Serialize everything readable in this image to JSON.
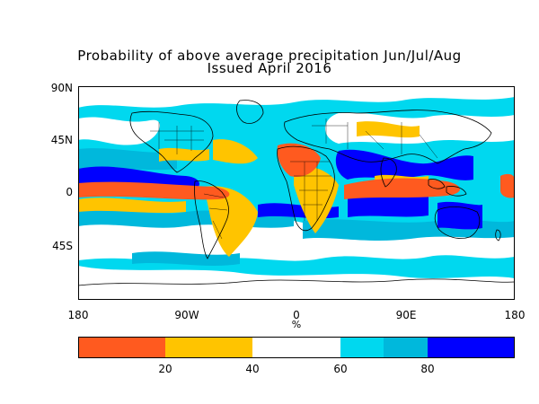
{
  "title": {
    "line1": "Probability of above average precipitation Jun/Jul/Aug",
    "line2": "Issued April 2016"
  },
  "map": {
    "lat_labels": [
      "90N",
      "45N",
      "0",
      "45S"
    ],
    "lon_labels": [
      "180",
      "90W",
      "0",
      "90E",
      "180"
    ],
    "lon_unit": "%"
  },
  "colorbar": {
    "ticks": [
      "20",
      "40",
      "60",
      "80"
    ],
    "colors": [
      "#ff5a1f",
      "#ffc400",
      "#ffffff",
      "#00d8ef",
      "#00b8dc",
      "#0000ff"
    ]
  },
  "colors": {
    "very_low": "#ff5a1f",
    "low": "#ffc400",
    "neutral": "#ffffff",
    "high_light": "#00d8ef",
    "high": "#00b8dc",
    "very_high": "#0000ff"
  }
}
